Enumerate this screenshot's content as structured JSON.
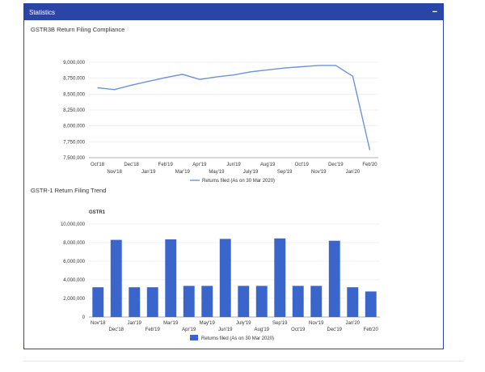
{
  "panel": {
    "title": "Statistics",
    "collapse_symbol": "−"
  },
  "colors": {
    "header": "#2b45a6",
    "line_series": "#6b93d6",
    "bar_series": "#3a66cc",
    "grid": "#e6e6e6"
  },
  "chart_data": [
    {
      "type": "line",
      "title": "GSTR3B Return Filing Compliance",
      "categories": [
        "Oct'18",
        "Nov'18",
        "Dec'18",
        "Jan'19",
        "Feb'19",
        "Mar'19",
        "Apr'19",
        "May'19",
        "Jun'19",
        "July'19",
        "Aug'19",
        "Sep'19",
        "Oct'19",
        "Nov'19",
        "Dec'19",
        "Jan'20",
        "Feb'20"
      ],
      "series": [
        {
          "name": "Returns filed (As on 30 Mar 2020)",
          "values": [
            8600000,
            8570000,
            8640000,
            8700000,
            8760000,
            8810000,
            8730000,
            8770000,
            8800000,
            8850000,
            8880000,
            8910000,
            8930000,
            8950000,
            8950000,
            8780000,
            7620000
          ]
        }
      ],
      "y_ticks": [
        7500000,
        7750000,
        8000000,
        8250000,
        8500000,
        8750000,
        9000000
      ],
      "y_tick_labels": [
        "7,500,000",
        "7,750,000",
        "8,000,000",
        "8,250,000",
        "8,500,000",
        "8,750,000",
        "9,000,000"
      ],
      "ylim": [
        7500000,
        9000000
      ],
      "grid": true,
      "legend_position": "bottom"
    },
    {
      "type": "bar",
      "title": "GSTR-1 Return Filing Trend",
      "subtitle": "GSTR1",
      "categories": [
        "Nov'18",
        "Dec'18",
        "Jan'19",
        "Feb'19",
        "Mar'19",
        "Apr'19",
        "May'19",
        "Jun'19",
        "July'19",
        "Aug'19",
        "Sep'19",
        "Oct'19",
        "Nov'19",
        "Dec'19",
        "Jan'20",
        "Feb'20"
      ],
      "series": [
        {
          "name": "Returns filed (As on 30 Mar 2020)",
          "values": [
            3200000,
            8300000,
            3200000,
            3200000,
            8350000,
            3350000,
            3350000,
            8400000,
            3350000,
            3350000,
            8450000,
            3350000,
            3350000,
            8200000,
            3200000,
            2750000
          ]
        }
      ],
      "y_ticks": [
        0,
        2000000,
        4000000,
        6000000,
        8000000,
        10000000
      ],
      "y_tick_labels": [
        "0",
        "2,000,000",
        "4,000,000",
        "6,000,000",
        "8,000,000",
        "10,000,000"
      ],
      "ylim": [
        0,
        10000000
      ],
      "grid": true,
      "legend_position": "bottom"
    }
  ]
}
